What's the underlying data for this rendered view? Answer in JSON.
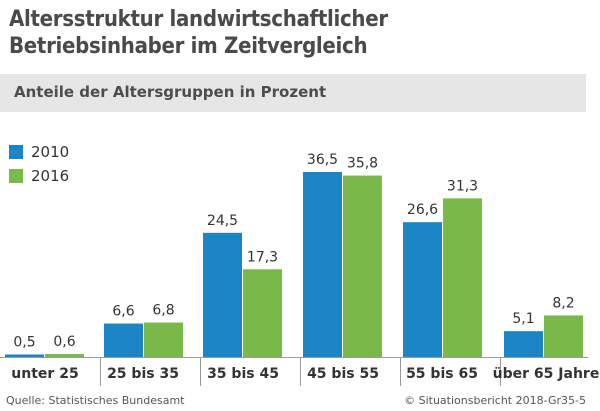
{
  "title_line1": "Altersstruktur landwirtschaftlicher",
  "title_line2": "Betriebsinhaber im Zeitvergleich",
  "subtitle": "Anteile der Altersgruppen in Prozent",
  "source": "Quelle: Statistisches Bundesamt",
  "credit": "© Situationsbericht 2018-Gr35-5",
  "colors": {
    "s2010": "#1a86c6",
    "s2016": "#79b94a",
    "axis": "#9a9a9a",
    "subtitle_bg": "#e6e6e6"
  },
  "chart_data": {
    "type": "bar",
    "categories": [
      "unter 25",
      "25 bis 35",
      "35 bis 45",
      "45 bis 55",
      "55 bis 65",
      "über 65 Jahre"
    ],
    "series": [
      {
        "name": "2010",
        "values": [
          0.5,
          6.6,
          24.5,
          36.5,
          26.6,
          5.1
        ],
        "labels": [
          "0,5",
          "6,6",
          "24,5",
          "36,5",
          "26,6",
          "5,1"
        ]
      },
      {
        "name": "2016",
        "values": [
          0.6,
          6.8,
          17.3,
          35.8,
          31.3,
          8.2
        ],
        "labels": [
          "0,6",
          "6,8",
          "17,3",
          "35,8",
          "31,3",
          "8,2"
        ]
      }
    ],
    "ylim": [
      0,
      36.5
    ],
    "grid": false,
    "legend": "top-left"
  }
}
